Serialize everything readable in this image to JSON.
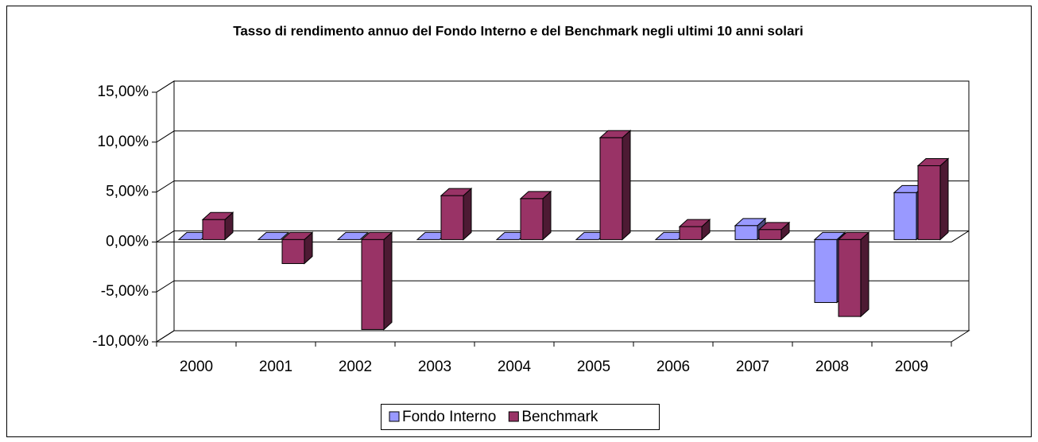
{
  "chart_data": {
    "type": "bar",
    "title": "Tasso di rendimento annuo del Fondo Interno e del Benchmark negli ultimi 10 anni solari",
    "categories": [
      "2000",
      "2001",
      "2002",
      "2003",
      "2004",
      "2005",
      "2006",
      "2007",
      "2008",
      "2009"
    ],
    "series": [
      {
        "name": "Fondo Interno",
        "color": "#9999ff",
        "side": "#4d4d80",
        "values": [
          0,
          0,
          0,
          0,
          0,
          0,
          0,
          1.4,
          -6.3,
          4.7
        ]
      },
      {
        "name": "Benchmark",
        "color": "#993366",
        "side": "#4d1a33",
        "values": [
          2.0,
          -2.4,
          -9.0,
          4.4,
          4.1,
          10.2,
          1.3,
          1.0,
          -7.7,
          7.4
        ]
      }
    ],
    "ylim": [
      -10,
      15
    ],
    "yticks": [
      {
        "value": -10,
        "label": "-10,00%"
      },
      {
        "value": -5,
        "label": "-5,00%"
      },
      {
        "value": 0,
        "label": "0,00%"
      },
      {
        "value": 5,
        "label": "5,00%"
      },
      {
        "value": 10,
        "label": "10,00%"
      },
      {
        "value": 15,
        "label": "15,00%"
      }
    ],
    "grid": true,
    "legend": "bottom"
  }
}
